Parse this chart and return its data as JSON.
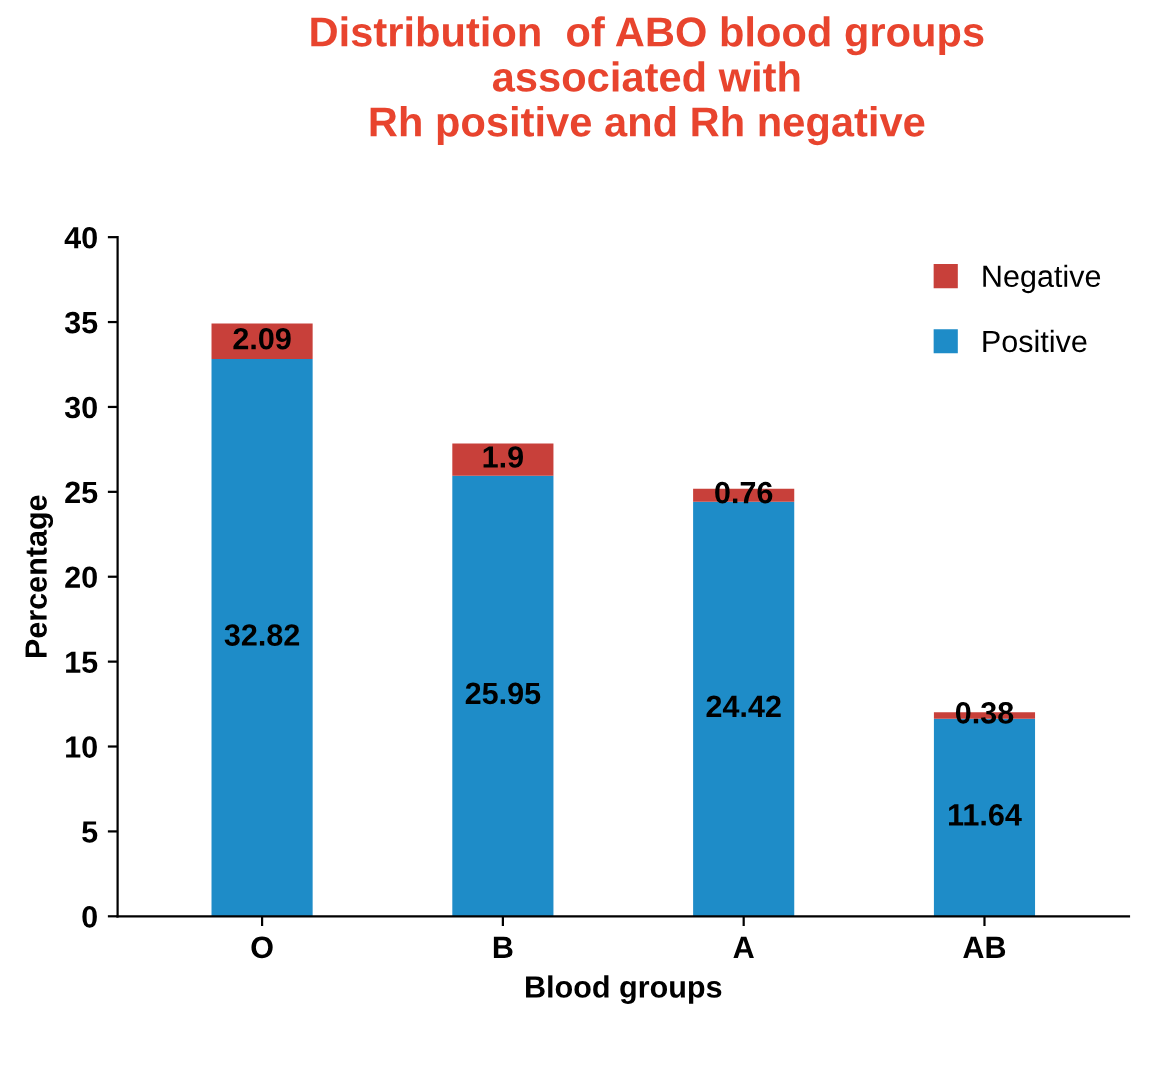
{
  "chart_data": {
    "type": "bar",
    "stacked": true,
    "title": "Distribution  of ABO blood groups\nassociated with\nRh positive and Rh negative",
    "xlabel": "Blood groups",
    "ylabel": "Percentage",
    "categories": [
      "O",
      "B",
      "A",
      "AB"
    ],
    "series": [
      {
        "name": "Positive",
        "color": "#1e8cc8",
        "values": [
          32.82,
          25.95,
          24.42,
          11.64
        ]
      },
      {
        "name": "Negative",
        "color": "#c8403a",
        "values": [
          2.09,
          1.9,
          0.76,
          0.38
        ]
      }
    ],
    "ylim": [
      0,
      40
    ],
    "yticks": [
      0,
      5,
      10,
      15,
      20,
      25,
      30,
      35,
      40
    ],
    "data_labels": true,
    "legend": "top right",
    "grid": false
  }
}
